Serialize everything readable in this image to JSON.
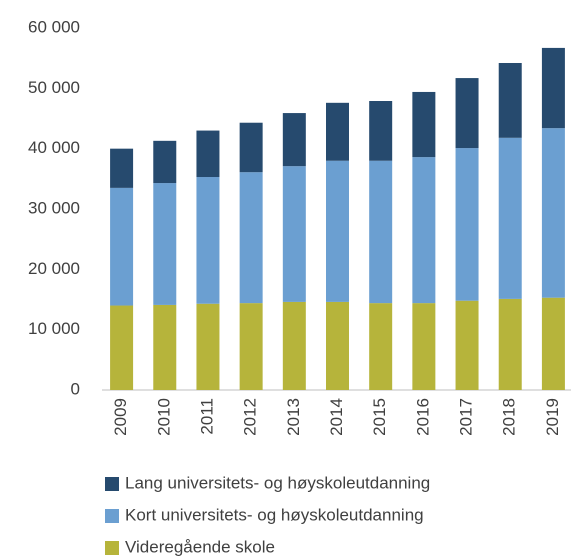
{
  "chart_data": {
    "type": "bar",
    "stacked": true,
    "categories": [
      "2009",
      "2010",
      "2011",
      "2012",
      "2013",
      "2014",
      "2015",
      "2016",
      "2017",
      "2018",
      "2019"
    ],
    "series": [
      {
        "name": "Lang universitets- og høyskoleutdanning",
        "color": "#264a6e",
        "values": [
          6500,
          7000,
          7700,
          8200,
          8800,
          9600,
          9900,
          10800,
          11600,
          12400,
          13300
        ]
      },
      {
        "name": "Kort universitets- og høyskoleutdanning",
        "color": "#6b9fd1",
        "values": [
          19500,
          20200,
          21000,
          21700,
          22500,
          23400,
          23600,
          24200,
          25300,
          26700,
          28100
        ]
      },
      {
        "name": "Videregående skole",
        "color": "#b6b43b",
        "values": [
          14000,
          14100,
          14300,
          14400,
          14600,
          14600,
          14400,
          14400,
          14800,
          15100,
          15300
        ]
      }
    ],
    "ylim": [
      0,
      60000
    ],
    "yticks": [
      0,
      {
        "value": 10000,
        "label": "10 000"
      },
      {
        "value": 20000,
        "label": "20 000"
      },
      {
        "value": 30000,
        "label": "30 000"
      },
      {
        "value": 40000,
        "label": "40 000"
      },
      {
        "value": 50000,
        "label": "50 000"
      },
      {
        "value": 60000,
        "label": "60 000"
      }
    ],
    "grid": false
  }
}
